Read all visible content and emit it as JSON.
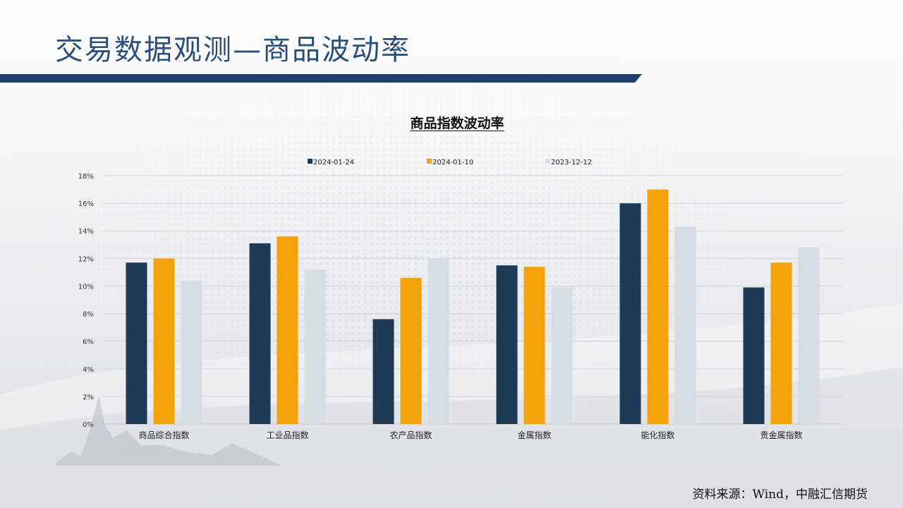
{
  "slide": {
    "title": "交易数据观测—商品波动率",
    "source": "资料来源：Wind，中融汇信期货",
    "colors": {
      "title": "#2b4f78",
      "bar_dark": "#2b4f78"
    }
  },
  "chart_data": {
    "type": "bar",
    "title": "商品指数波动率",
    "xlabel": "",
    "ylabel": "",
    "categories": [
      "商品综合指数",
      "工业品指数",
      "农产品指数",
      "金属指数",
      "能化指数",
      "贵金属指数"
    ],
    "series": [
      {
        "name": "2024-01-24",
        "color": "#1f3a57",
        "values": [
          11.7,
          13.1,
          7.6,
          11.5,
          16.0,
          9.9
        ]
      },
      {
        "name": "2024-01-10",
        "color": "#f5a20a",
        "values": [
          12.0,
          13.6,
          10.6,
          11.4,
          17.0,
          11.7
        ]
      },
      {
        "name": "2023-12-12",
        "color": "#d6dce4",
        "values": [
          10.4,
          11.2,
          12.0,
          9.9,
          14.3,
          12.8
        ]
      }
    ],
    "ylim": [
      0,
      18
    ],
    "yticks": [
      "0%",
      "2%",
      "4%",
      "6%",
      "8%",
      "10%",
      "12%",
      "14%",
      "16%",
      "18%"
    ],
    "grid": true,
    "legend": "top"
  }
}
